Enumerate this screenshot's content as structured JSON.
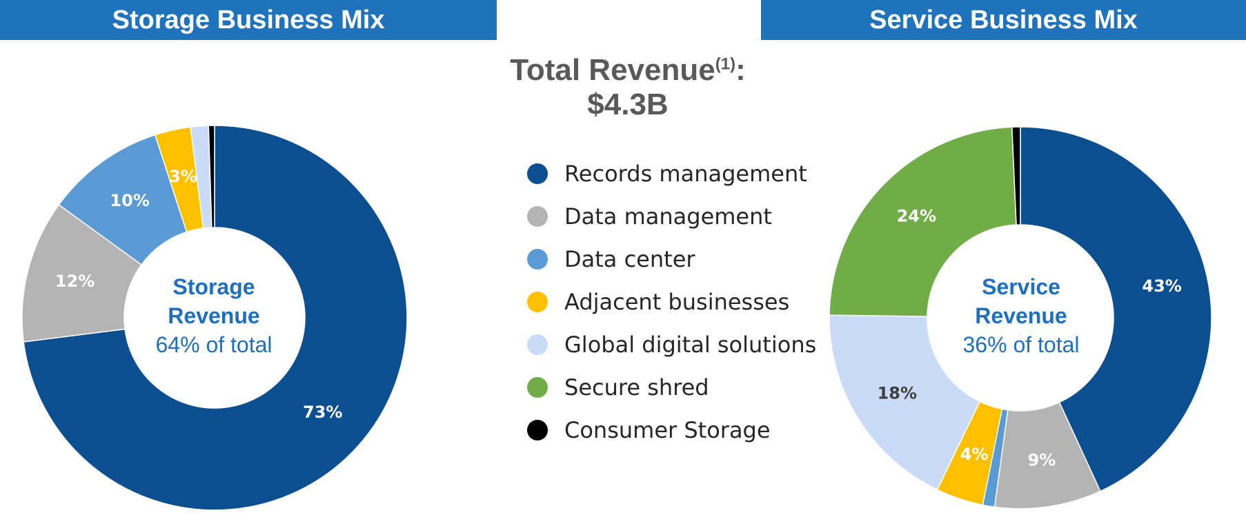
{
  "banners": {
    "left": {
      "text": "Storage Business Mix",
      "color": "#1f73bd"
    },
    "right": {
      "text": "Service Business Mix",
      "color": "#1f73bd"
    }
  },
  "total": {
    "label": "Total Revenue",
    "footnote": "(1)",
    "colon": ":",
    "value": "$4.3B"
  },
  "legend": [
    {
      "label": "Records management",
      "color": "#0b4f91"
    },
    {
      "label": "Data management",
      "color": "#b4b4b4"
    },
    {
      "label": "Data center",
      "color": "#5b9bd5"
    },
    {
      "label": "Adjacent businesses",
      "color": "#ffc000"
    },
    {
      "label": "Global digital solutions",
      "color": "#c9dbf6"
    },
    {
      "label": "Secure shred",
      "color": "#70ad47"
    },
    {
      "label": "Consumer Storage",
      "color": "#000000"
    }
  ],
  "chart_data": [
    {
      "type": "pie",
      "title": "Storage Business Mix",
      "center_label": {
        "title_line1": "Storage",
        "title_line2": "Revenue",
        "subtitle": "64% of total"
      },
      "slices": [
        {
          "name": "Records management",
          "value": 73,
          "label": "73%",
          "color": "#0b4f91",
          "label_color": "#ffffff"
        },
        {
          "name": "Data management",
          "value": 12,
          "label": "12%",
          "color": "#b4b4b4",
          "label_color": "#ffffff"
        },
        {
          "name": "Data center",
          "value": 10,
          "label": "10%",
          "color": "#5b9bd5",
          "label_color": "#ffffff"
        },
        {
          "name": "Adjacent businesses",
          "value": 3,
          "label": "3%",
          "color": "#ffc000",
          "label_color": "#ffffff"
        },
        {
          "name": "Global digital solutions",
          "value": 1.5,
          "label": "",
          "color": "#c9dbf6",
          "label_color": "#ffffff"
        },
        {
          "name": "Consumer Storage",
          "value": 0.5,
          "label": "",
          "color": "#000000",
          "label_color": "#ffffff"
        }
      ]
    },
    {
      "type": "pie",
      "title": "Service Business Mix",
      "center_label": {
        "title_line1": "Service",
        "title_line2": "Revenue",
        "subtitle": "36% of total"
      },
      "slices": [
        {
          "name": "Records management",
          "value": 43,
          "label": "43%",
          "color": "#0b4f91",
          "label_color": "#ffffff"
        },
        {
          "name": "Data management",
          "value": 9,
          "label": "9%",
          "color": "#b4b4b4",
          "label_color": "#ffffff"
        },
        {
          "name": "Data center",
          "value": 1,
          "label": "",
          "color": "#5b9bd5",
          "label_color": "#ffffff"
        },
        {
          "name": "Adjacent businesses",
          "value": 4,
          "label": "4%",
          "color": "#ffc000",
          "label_color": "#ffffff"
        },
        {
          "name": "Global digital solutions",
          "value": 18,
          "label": "18%",
          "color": "#c9dbf6",
          "label_color": "#404040"
        },
        {
          "name": "Secure shred",
          "value": 24,
          "label": "24%",
          "color": "#70ad47",
          "label_color": "#ffffff"
        },
        {
          "name": "Consumer Storage",
          "value": 0.7,
          "label": "",
          "color": "#000000",
          "label_color": "#ffffff"
        }
      ]
    }
  ]
}
